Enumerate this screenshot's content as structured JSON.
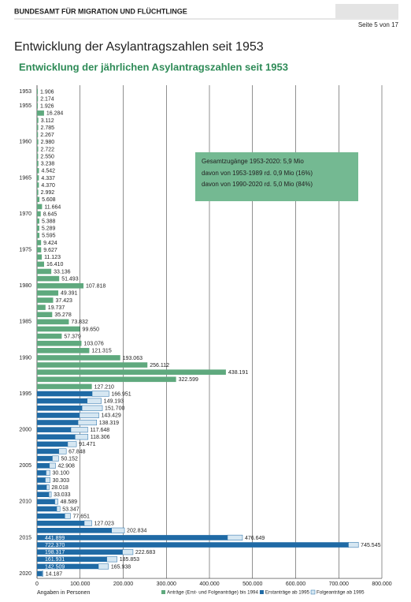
{
  "header": {
    "agency": "BUNDESAMT FÜR MIGRATION UND FLÜCHTLINGE",
    "page": "Seite 5 von 17"
  },
  "heading": "Entwicklung der Asylantragszahlen seit 1953",
  "chart_data": {
    "type": "bar",
    "orientation": "horizontal",
    "stacked": true,
    "title": "Entwicklung der jährlichen Asylantragszahlen seit 1953",
    "xlabel": "Angaben in Personen",
    "annotation": [
      "Gesamtzugänge 1953-2020: 5,9 Mio",
      "davon von 1953-1989 rd. 0,9 Mio (16%)",
      "davon von 1990-2020 rd. 5,0 Mio (84%)"
    ],
    "categories": [
      1953,
      null,
      1955,
      null,
      null,
      null,
      null,
      1960,
      null,
      null,
      null,
      null,
      1965,
      null,
      null,
      null,
      null,
      1970,
      null,
      null,
      null,
      null,
      1975,
      null,
      null,
      null,
      null,
      1980,
      null,
      null,
      null,
      null,
      1985,
      null,
      null,
      null,
      null,
      1990,
      null,
      null,
      null,
      null,
      1995,
      null,
      null,
      null,
      null,
      2000,
      null,
      null,
      null,
      null,
      2005,
      null,
      null,
      null,
      null,
      2010,
      null,
      null,
      null,
      null,
      2015,
      null,
      null,
      null,
      null,
      2020
    ],
    "series": [
      {
        "name": "Anträge (Erst- und Folgeanträge) bis 1994",
        "color": "#5fa97e",
        "values": [
          1906,
          2174,
          1926,
          16284,
          3112,
          2785,
          2267,
          2980,
          2722,
          2550,
          3238,
          4542,
          4337,
          4370,
          2992,
          5608,
          11664,
          8645,
          5388,
          5289,
          5595,
          9424,
          9627,
          11123,
          16410,
          33136,
          51493,
          107818,
          49391,
          37423,
          19737,
          35278,
          73832,
          99650,
          57379,
          103076,
          121315,
          193063,
          256112,
          438191,
          322599,
          127210,
          null,
          null,
          null,
          null,
          null,
          null,
          null,
          null,
          null,
          null,
          null,
          null,
          null,
          null,
          null,
          null,
          null,
          null,
          null,
          null,
          null,
          null,
          null,
          null,
          null,
          null
        ]
      },
      {
        "name": "Erstanträge ab 1995",
        "color": "#1f6aa5",
        "values": [
          null,
          null,
          null,
          null,
          null,
          null,
          null,
          null,
          null,
          null,
          null,
          null,
          null,
          null,
          null,
          null,
          null,
          null,
          null,
          null,
          null,
          null,
          null,
          null,
          null,
          null,
          null,
          null,
          null,
          null,
          null,
          null,
          null,
          null,
          null,
          null,
          null,
          null,
          null,
          null,
          null,
          null,
          127937,
          116367,
          104353,
          98644,
          95113,
          78564,
          88287,
          71127,
          50563,
          35607,
          28914,
          21029,
          19164,
          22085,
          27649,
          41332,
          45741,
          64539,
          109580,
          173072,
          441899,
          722370,
          198317,
          161931,
          142509,
          11900
        ],
        "value_labels": [
          null,
          null,
          null,
          null,
          null,
          null,
          null,
          null,
          null,
          null,
          null,
          null,
          null,
          null,
          null,
          null,
          null,
          null,
          null,
          null,
          null,
          null,
          null,
          null,
          null,
          null,
          null,
          null,
          null,
          null,
          null,
          null,
          null,
          null,
          null,
          null,
          null,
          null,
          null,
          null,
          null,
          null,
          null,
          null,
          null,
          null,
          null,
          null,
          null,
          null,
          null,
          null,
          null,
          null,
          null,
          null,
          null,
          null,
          null,
          null,
          null,
          null,
          "441.899",
          "722.370",
          "198.317",
          "161.931",
          "142.509",
          null
        ]
      },
      {
        "name": "Folgeanträge ab 1995",
        "color": "#d6e7f2",
        "values": [
          null,
          null,
          null,
          null,
          null,
          null,
          null,
          null,
          null,
          null,
          null,
          null,
          null,
          null,
          null,
          null,
          null,
          null,
          null,
          null,
          null,
          null,
          null,
          null,
          null,
          null,
          null,
          null,
          null,
          null,
          null,
          null,
          null,
          null,
          null,
          null,
          null,
          null,
          null,
          null,
          null,
          null,
          39014,
          32826,
          47347,
          44785,
          43206,
          39084,
          30019,
          20344,
          17285,
          14545,
          13994,
          9071,
          11139,
          5933,
          5384,
          7257,
          7606,
          13112,
          17443,
          29762,
          34750,
          23175,
          24366,
          23922,
          23429,
          2287
        ]
      }
    ],
    "totals": {
      "values": [
        1906,
        2174,
        1926,
        16284,
        3112,
        2785,
        2267,
        2980,
        2722,
        2550,
        3238,
        4542,
        4337,
        4370,
        2992,
        5608,
        11664,
        8645,
        5388,
        5289,
        5595,
        9424,
        9627,
        11123,
        16410,
        33136,
        51493,
        107818,
        49391,
        37423,
        19737,
        35278,
        73832,
        99650,
        57379,
        103076,
        121315,
        193063,
        256112,
        438191,
        322599,
        127210,
        166951,
        149193,
        151700,
        143429,
        138319,
        117648,
        118306,
        91471,
        67848,
        50152,
        42908,
        30100,
        30303,
        28018,
        33033,
        48589,
        53347,
        77651,
        127023,
        202834,
        476649,
        745545,
        222683,
        185853,
        165938,
        14187
      ],
      "value_labels": [
        "1.906",
        "2.174",
        "1.926",
        "16.284",
        "3.112",
        "2.785",
        "2.267",
        "2.980",
        "2.722",
        "2.550",
        "3.238",
        "4.542",
        "4.337",
        "4.370",
        "2.992",
        "5.608",
        "11.664",
        "8.645",
        "5.388",
        "5.289",
        "5.595",
        "9.424",
        "9.627",
        "11.123",
        "16.410",
        "33.136",
        "51.493",
        "107.818",
        "49.391",
        "37.423",
        "19.737",
        "35.278",
        "73.832",
        "99.650",
        "57.379",
        "103.076",
        "121.315",
        "193.063",
        "256.112",
        "438.191",
        "322.599",
        "127.210",
        "166.951",
        "149.193",
        "151.700",
        "143.429",
        "138.319",
        "117.648",
        "118.306",
        "91.471",
        "67.848",
        "50.152",
        "42.908",
        "30.100",
        "30.303",
        "28.018",
        "33.033",
        "48.589",
        "53.347",
        "77.651",
        "127.023",
        "202.834",
        "476.649",
        "745.545",
        "222.683",
        "185.853",
        "165.938",
        "14.187"
      ]
    },
    "xlim": [
      0,
      800000
    ],
    "xticks": [
      0,
      {
        "value": 100000,
        "label": "100.000"
      },
      {
        "value": 200000,
        "label": "200.000"
      },
      {
        "value": 300000,
        "label": "300.000"
      },
      {
        "value": 400000,
        "label": "400.000"
      },
      {
        "value": 500000,
        "label": "500.000"
      },
      {
        "value": 600000,
        "label": "600.000"
      },
      {
        "value": 700000,
        "label": "700.000"
      },
      {
        "value": 800000,
        "label": "800.000"
      }
    ],
    "grid": true,
    "legend": "bottom-right"
  }
}
